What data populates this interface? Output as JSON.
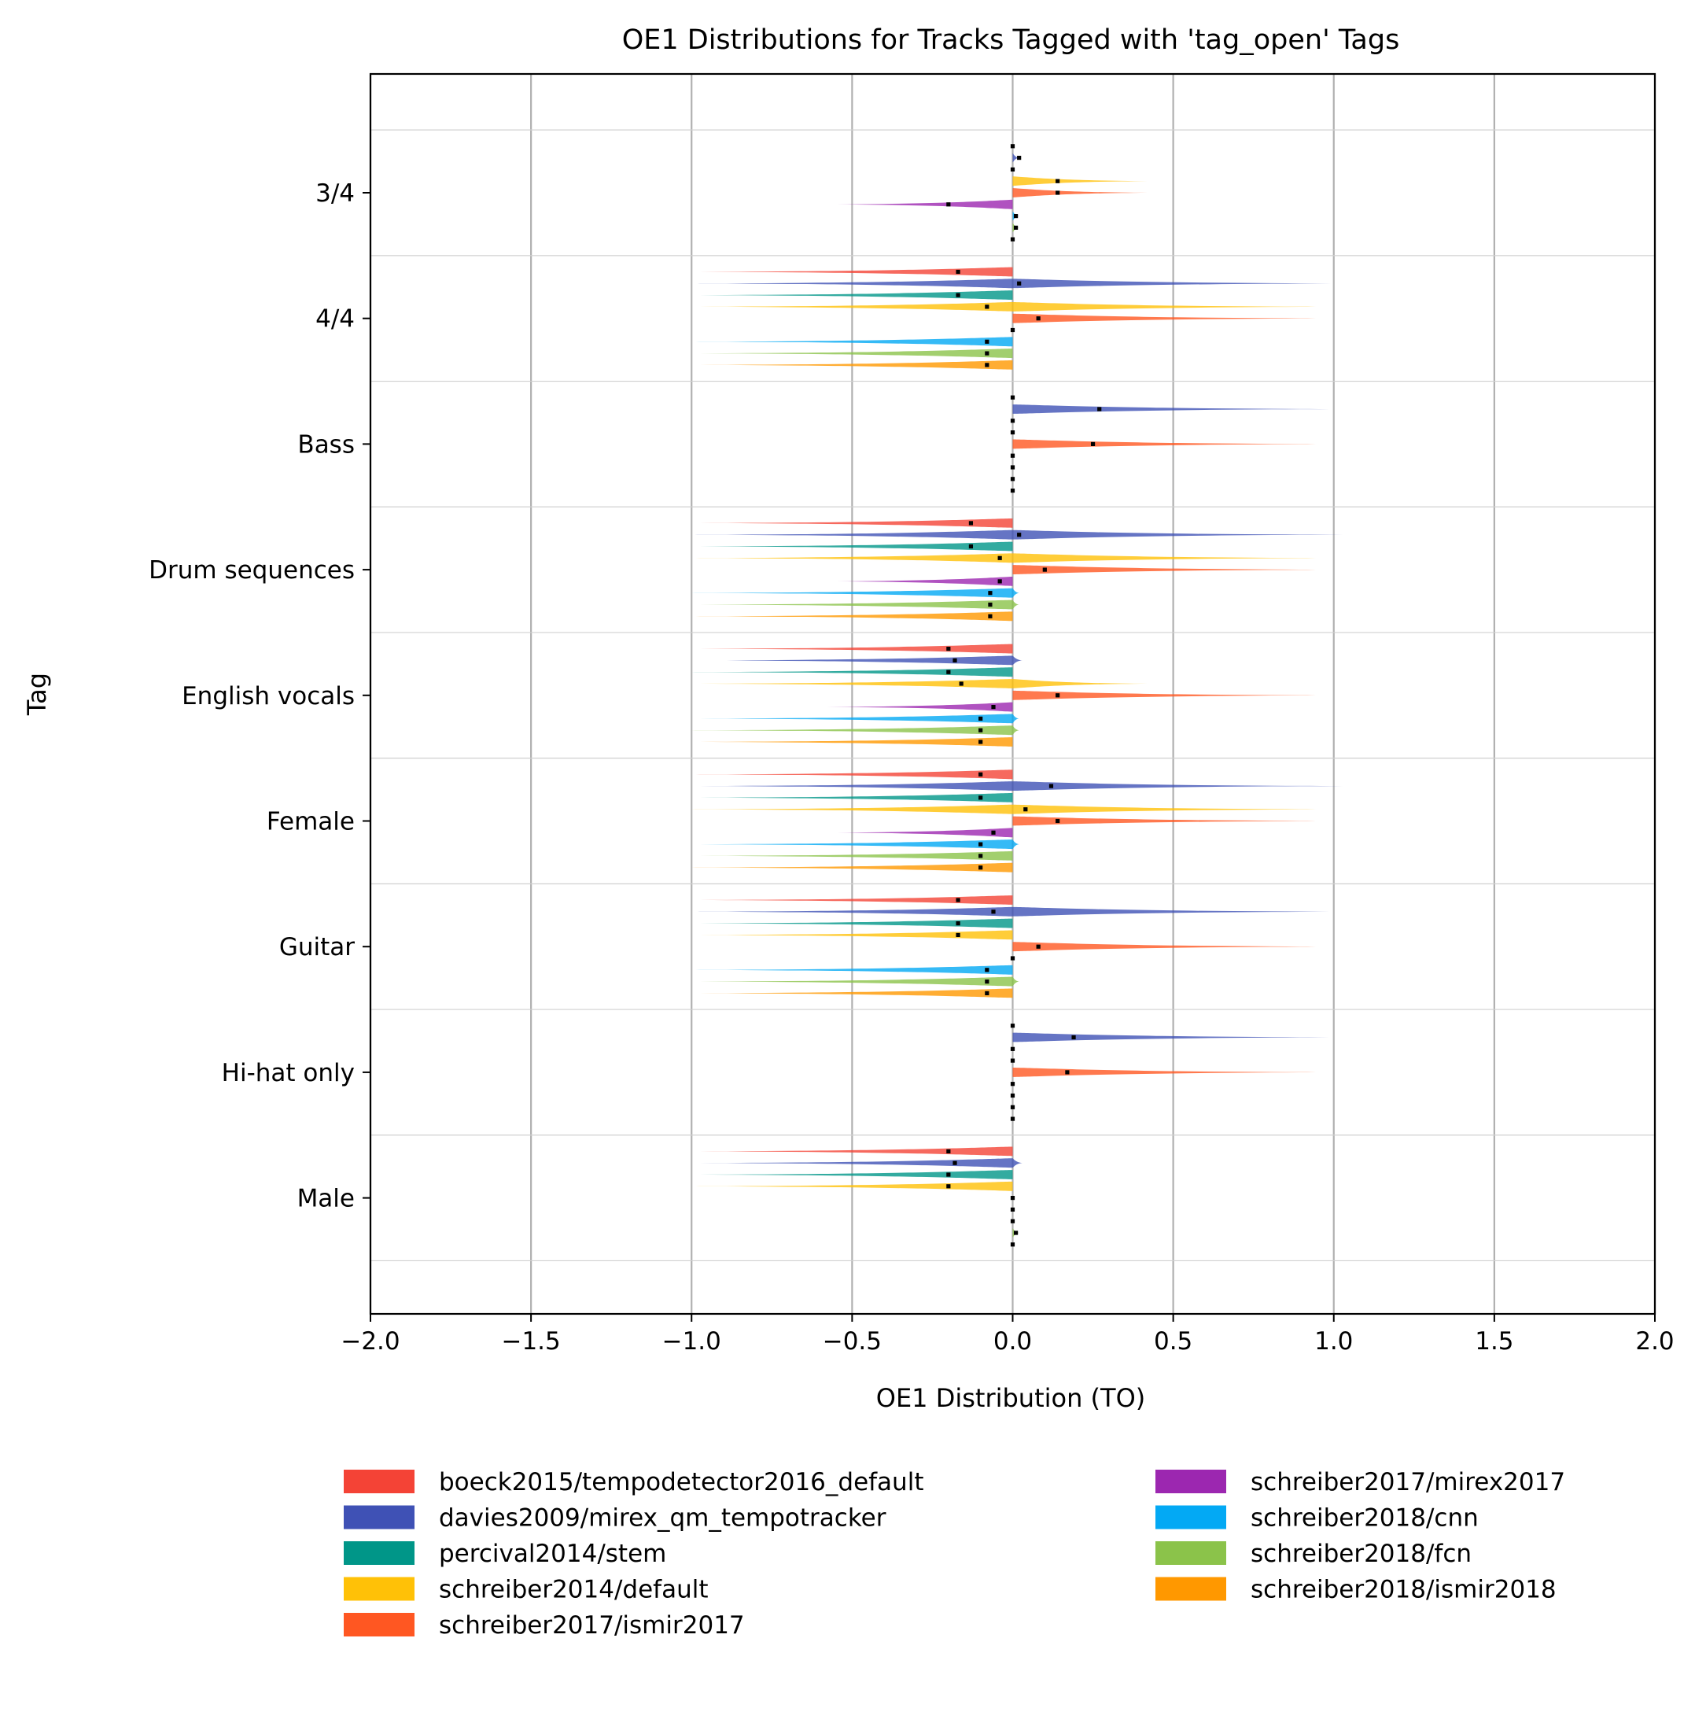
{
  "chart_data": {
    "type": "violin",
    "orientation": "horizontal",
    "title": "OE1 Distributions for Tracks Tagged with 'tag_open' Tags",
    "xlabel": "OE1 Distribution (TO)",
    "ylabel": "Tag",
    "xlim": [
      -2.0,
      2.0
    ],
    "xticks": [
      -2.0,
      -1.5,
      -1.0,
      -0.5,
      0.0,
      0.5,
      1.0,
      1.5,
      2.0
    ],
    "xtick_labels": [
      "−2.0",
      "−1.5",
      "−1.0",
      "−0.5",
      "0.0",
      "0.5",
      "1.0",
      "1.5",
      "2.0"
    ],
    "grid": "x-major, with horizontal separators between tags",
    "legend_position": "below plot, two columns",
    "categories": [
      "3/4",
      "4/4",
      "Bass",
      "Drum sequences",
      "English vocals",
      "Female",
      "Guitar",
      "Hi-hat only",
      "Male"
    ],
    "series": [
      {
        "name": "boeck2015/tempodetector2016_default",
        "color": "#f44336",
        "mins": [
          0.0,
          -1.0,
          0.0,
          -1.0,
          -1.0,
          -1.0,
          -1.0,
          0.0,
          -1.0
        ],
        "maxs": [
          0.0,
          0.0,
          0.0,
          0.0,
          0.0,
          0.0,
          0.0,
          0.0,
          0.0
        ],
        "means": [
          0.0,
          -0.17,
          0.0,
          -0.13,
          -0.2,
          -0.1,
          -0.17,
          0.0,
          -0.2
        ]
      },
      {
        "name": "davies2009/mirex_qm_tempotracker",
        "color": "#3f51b5",
        "mins": [
          0.0,
          -0.99,
          0.0,
          -0.99,
          -0.99,
          -0.99,
          -0.99,
          0.0,
          -0.98
        ],
        "maxs": [
          0.02,
          1.03,
          1.02,
          1.03,
          0.03,
          1.03,
          1.02,
          1.02,
          0.03
        ],
        "means": [
          0.02,
          0.02,
          0.27,
          0.02,
          -0.18,
          0.12,
          -0.06,
          0.19,
          -0.18
        ]
      },
      {
        "name": "percival2014/stem",
        "color": "#009688",
        "mins": [
          0.0,
          -1.0,
          0.0,
          -1.0,
          -1.0,
          -1.0,
          -1.0,
          0.0,
          -1.0
        ],
        "maxs": [
          0.0,
          0.0,
          0.0,
          0.0,
          0.0,
          0.0,
          0.0,
          0.0,
          0.0
        ],
        "means": [
          0.0,
          -0.17,
          0.0,
          -0.13,
          -0.2,
          -0.1,
          -0.17,
          0.0,
          -0.2
        ]
      },
      {
        "name": "schreiber2014/default",
        "color": "#ffc107",
        "mins": [
          0.0,
          -1.0,
          0.0,
          -1.0,
          -1.0,
          -1.0,
          -1.0,
          0.0,
          -1.0
        ],
        "maxs": [
          0.42,
          1.0,
          0.0,
          1.0,
          0.42,
          1.0,
          0.0,
          0.0,
          0.0
        ],
        "means": [
          0.14,
          -0.08,
          0.0,
          -0.04,
          -0.16,
          0.04,
          -0.17,
          0.0,
          -0.2
        ]
      },
      {
        "name": "schreiber2017/ismir2017",
        "color": "#ff5722",
        "mins": [
          0.0,
          0.0,
          0.0,
          0.0,
          0.0,
          0.0,
          0.0,
          0.0,
          0.0
        ],
        "maxs": [
          0.42,
          1.0,
          1.0,
          1.0,
          1.0,
          1.0,
          1.0,
          1.0,
          0.0
        ],
        "means": [
          0.14,
          0.08,
          0.25,
          0.1,
          0.14,
          0.14,
          0.08,
          0.17,
          0.0
        ]
      },
      {
        "name": "schreiber2017/mirex2017",
        "color": "#9c27b0",
        "mins": [
          -0.58,
          0.0,
          0.0,
          -0.58,
          -0.58,
          -0.58,
          0.0,
          0.0,
          0.0
        ],
        "maxs": [
          0.0,
          0.0,
          0.0,
          0.0,
          0.0,
          0.0,
          0.0,
          0.0,
          0.0
        ],
        "means": [
          -0.2,
          0.0,
          0.0,
          -0.04,
          -0.06,
          -0.06,
          0.0,
          0.0,
          0.0
        ]
      },
      {
        "name": "schreiber2018/cnn",
        "color": "#03a9f4",
        "mins": [
          0.0,
          -1.0,
          0.0,
          -1.0,
          -1.0,
          -1.0,
          -1.0,
          0.0,
          0.0
        ],
        "maxs": [
          0.02,
          0.0,
          0.0,
          0.02,
          0.02,
          0.02,
          0.0,
          0.0,
          0.0
        ],
        "means": [
          0.01,
          -0.08,
          0.0,
          -0.07,
          -0.1,
          -0.1,
          -0.08,
          0.0,
          0.0
        ]
      },
      {
        "name": "schreiber2018/fcn",
        "color": "#8bc34a",
        "mins": [
          0.0,
          -1.0,
          0.0,
          -1.0,
          -1.0,
          -1.0,
          -1.0,
          0.0,
          0.0
        ],
        "maxs": [
          0.02,
          0.0,
          0.0,
          0.02,
          0.02,
          0.0,
          0.02,
          0.0,
          0.02
        ],
        "means": [
          0.01,
          -0.08,
          0.0,
          -0.07,
          -0.1,
          -0.1,
          -0.08,
          0.0,
          0.01
        ]
      },
      {
        "name": "schreiber2018/ismir2018",
        "color": "#ff9800",
        "mins": [
          0.0,
          -1.0,
          0.0,
          -1.0,
          -1.0,
          -1.0,
          -1.0,
          0.0,
          0.0
        ],
        "maxs": [
          0.0,
          0.0,
          0.0,
          0.0,
          0.0,
          0.0,
          0.0,
          0.0,
          0.0
        ],
        "means": [
          0.0,
          -0.08,
          0.0,
          -0.07,
          -0.1,
          -0.1,
          -0.08,
          0.0,
          0.0
        ]
      }
    ]
  }
}
